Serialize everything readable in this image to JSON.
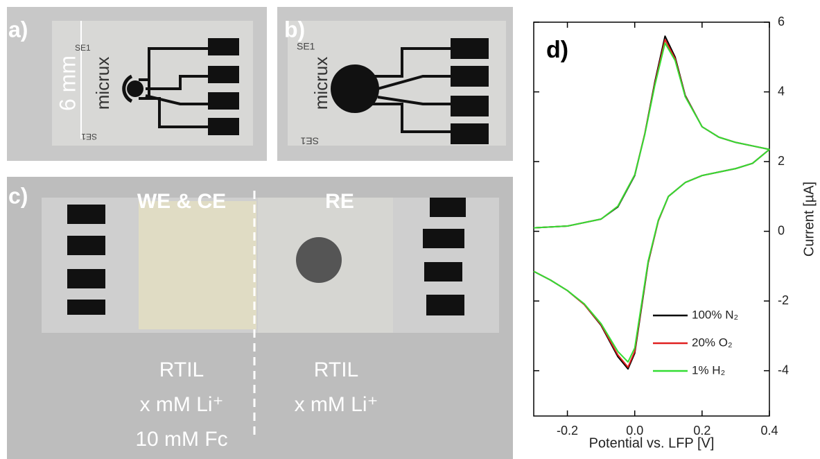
{
  "chart_data": {
    "type": "line",
    "annotation": "d)",
    "xlabel": "Potential vs. LFP [V]",
    "ylabel": "Current [µA]",
    "x": [
      -0.3,
      -0.2,
      -0.1,
      -0.05,
      0,
      0.03,
      0.06,
      0.09,
      0.12,
      0.15,
      0.2,
      0.25,
      0.3,
      0.35,
      0.4,
      0.35,
      0.3,
      0.25,
      0.2,
      0.15,
      0.1,
      0.07,
      0.04,
      0.02,
      0,
      -0.02,
      -0.05,
      -0.1,
      -0.15,
      -0.2,
      -0.25,
      -0.3
    ],
    "series": [
      {
        "name": "100% N₂",
        "color": "#000000",
        "values": [
          0.1,
          0.15,
          0.35,
          0.7,
          1.6,
          2.8,
          4.3,
          5.6,
          5.0,
          3.9,
          3.0,
          2.7,
          2.55,
          2.45,
          2.35,
          1.95,
          1.8,
          1.7,
          1.6,
          1.4,
          1.0,
          0.3,
          -0.9,
          -2.2,
          -3.5,
          -3.95,
          -3.6,
          -2.7,
          -2.1,
          -1.7,
          -1.4,
          -1.15
        ]
      },
      {
        "name": "20% O₂",
        "color": "#e02020",
        "values": [
          0.1,
          0.15,
          0.35,
          0.72,
          1.62,
          2.8,
          4.25,
          5.5,
          4.95,
          3.88,
          3.0,
          2.7,
          2.55,
          2.45,
          2.35,
          1.95,
          1.8,
          1.7,
          1.6,
          1.4,
          1.0,
          0.3,
          -0.88,
          -2.15,
          -3.45,
          -3.9,
          -3.55,
          -2.68,
          -2.1,
          -1.7,
          -1.4,
          -1.15
        ]
      },
      {
        "name": "1% H₂",
        "color": "#33dd33",
        "values": [
          0.1,
          0.15,
          0.35,
          0.72,
          1.62,
          2.78,
          4.2,
          5.4,
          4.9,
          3.86,
          3.0,
          2.7,
          2.55,
          2.45,
          2.35,
          1.95,
          1.8,
          1.7,
          1.6,
          1.4,
          1.0,
          0.32,
          -0.85,
          -2.1,
          -3.35,
          -3.75,
          -3.45,
          -2.65,
          -2.08,
          -1.7,
          -1.4,
          -1.15
        ]
      }
    ],
    "xlim": [
      -0.3,
      0.4
    ],
    "ylim": [
      -5.3,
      6
    ],
    "xticks": [
      -0.2,
      {
        "value": 0,
        "label": "0.0"
      },
      0.2,
      0.4
    ],
    "yticks": [
      -4,
      -2,
      0,
      2,
      4,
      6
    ],
    "legend": "lower-right"
  },
  "photos": {
    "a": {
      "label": "a)",
      "scale": "6 mm",
      "brand": "micrux",
      "code": "SE1",
      "code2": "SE1"
    },
    "b": {
      "label": "b)",
      "brand": "micrux",
      "code": "SE1",
      "code2": "SE1"
    },
    "c": {
      "label": "c)",
      "left_title": "WE & CE",
      "right_title": "RE",
      "left_lines": [
        "RTIL",
        "x mM Li⁺",
        "10 mM Fc"
      ],
      "right_lines": [
        "RTIL",
        "x mM Li⁺"
      ]
    }
  }
}
